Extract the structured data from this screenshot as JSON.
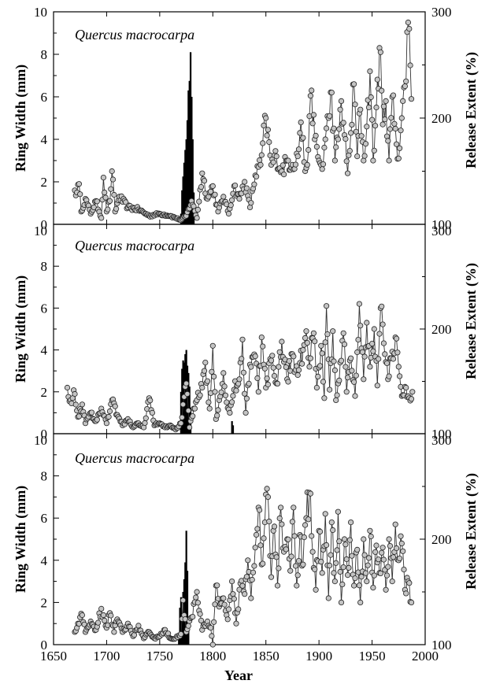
{
  "chart_data": {
    "type": "line",
    "x_axis": {
      "label": "Year",
      "range": [
        1650,
        2000
      ],
      "ticks": [
        1650,
        1700,
        1750,
        1800,
        1850,
        1900,
        1950,
        2000
      ]
    },
    "y_left": {
      "label": "Ring Width (mm)",
      "range": [
        0,
        10
      ],
      "ticks": [
        0,
        2,
        4,
        6,
        8,
        10
      ]
    },
    "y_right": {
      "label": "Release Extent (%)",
      "range": [
        100,
        300
      ],
      "ticks": [
        100,
        200,
        300
      ]
    },
    "panels": [
      {
        "title": "Quercus macrocarpa",
        "ring_width": {
          "start_year": 1670,
          "keypoints": [
            [
              1670,
              1.6
            ],
            [
              1672,
              1.5
            ],
            [
              1674,
              1.9
            ],
            [
              1676,
              0.6
            ],
            [
              1680,
              1.2
            ],
            [
              1685,
              0.5
            ],
            [
              1690,
              1.1
            ],
            [
              1695,
              0.3
            ],
            [
              1697,
              2.2
            ],
            [
              1700,
              0.6
            ],
            [
              1703,
              1.1
            ],
            [
              1705,
              2.5
            ],
            [
              1708,
              0.6
            ],
            [
              1712,
              1.3
            ],
            [
              1720,
              0.8
            ],
            [
              1730,
              0.7
            ],
            [
              1740,
              0.4
            ],
            [
              1750,
              0.5
            ],
            [
              1760,
              0.4
            ],
            [
              1770,
              0.2
            ],
            [
              1775,
              0.4
            ],
            [
              1780,
              1.1
            ],
            [
              1785,
              0.3
            ],
            [
              1790,
              2.4
            ],
            [
              1795,
              1.2
            ],
            [
              1800,
              1.8
            ],
            [
              1805,
              0.6
            ],
            [
              1810,
              1.3
            ],
            [
              1815,
              0.5
            ],
            [
              1820,
              1.8
            ],
            [
              1825,
              1.2
            ],
            [
              1830,
              2.0
            ],
            [
              1835,
              0.8
            ],
            [
              1840,
              2.3
            ],
            [
              1845,
              2.8
            ],
            [
              1850,
              5.0
            ],
            [
              1855,
              2.8
            ],
            [
              1860,
              3.2
            ],
            [
              1865,
              2.5
            ],
            [
              1870,
              3.0
            ],
            [
              1875,
              2.8
            ],
            [
              1880,
              3.2
            ],
            [
              1883,
              4.8
            ],
            [
              1887,
              2.5
            ],
            [
              1890,
              3.5
            ],
            [
              1893,
              6.3
            ],
            [
              1896,
              4.0
            ],
            [
              1900,
              3.0
            ],
            [
              1903,
              2.6
            ],
            [
              1906,
              4.0
            ],
            [
              1909,
              5.0
            ],
            [
              1912,
              6.2
            ],
            [
              1915,
              3.0
            ],
            [
              1918,
              4.0
            ],
            [
              1921,
              5.8
            ],
            [
              1924,
              4.2
            ],
            [
              1927,
              2.4
            ],
            [
              1930,
              4.3
            ],
            [
              1933,
              6.6
            ],
            [
              1936,
              3.2
            ],
            [
              1939,
              5.4
            ],
            [
              1942,
              3.0
            ],
            [
              1945,
              4.6
            ],
            [
              1948,
              7.2
            ],
            [
              1951,
              3.0
            ],
            [
              1954,
              5.5
            ],
            [
              1957,
              8.3
            ],
            [
              1960,
              4.7
            ],
            [
              1963,
              5.8
            ],
            [
              1966,
              3.0
            ],
            [
              1969,
              6.0
            ],
            [
              1972,
              4.5
            ],
            [
              1975,
              3.1
            ],
            [
              1978,
              5.0
            ],
            [
              1981,
              6.5
            ],
            [
              1984,
              9.5
            ],
            [
              1985,
              9.2
            ],
            [
              1987,
              5.9
            ]
          ]
        },
        "release_extent": {
          "years": [
            1770,
            1771,
            1772,
            1773,
            1774,
            1775,
            1776,
            1777,
            1778,
            1779,
            1780,
            1781,
            1782
          ],
          "values": [
            110,
            132,
            145,
            158,
            170,
            180,
            198,
            226,
            235,
            262,
            220,
            180,
            130
          ]
        }
      },
      {
        "title": "Quercus macrocarpa",
        "ring_width": {
          "start_year": 1663,
          "keypoints": [
            [
              1663,
              2.2
            ],
            [
              1666,
              1.6
            ],
            [
              1670,
              1.9
            ],
            [
              1673,
              0.8
            ],
            [
              1677,
              1.4
            ],
            [
              1680,
              0.5
            ],
            [
              1685,
              1.0
            ],
            [
              1690,
              0.6
            ],
            [
              1695,
              1.2
            ],
            [
              1700,
              0.5
            ],
            [
              1705,
              1.6
            ],
            [
              1710,
              0.9
            ],
            [
              1715,
              0.4
            ],
            [
              1720,
              0.7
            ],
            [
              1725,
              0.3
            ],
            [
              1730,
              0.5
            ],
            [
              1735,
              0.3
            ],
            [
              1740,
              1.7
            ],
            [
              1745,
              0.4
            ],
            [
              1750,
              0.5
            ],
            [
              1755,
              0.3
            ],
            [
              1760,
              0.4
            ],
            [
              1765,
              0.2
            ],
            [
              1770,
              0.5
            ],
            [
              1775,
              2.4
            ],
            [
              1778,
              0.3
            ],
            [
              1782,
              1.2
            ],
            [
              1785,
              1.6
            ],
            [
              1790,
              2.2
            ],
            [
              1793,
              3.4
            ],
            [
              1797,
              1.2
            ],
            [
              1800,
              4.2
            ],
            [
              1803,
              0.7
            ],
            [
              1806,
              1.6
            ],
            [
              1810,
              2.9
            ],
            [
              1813,
              1.5
            ],
            [
              1816,
              1.0
            ],
            [
              1820,
              2.1
            ],
            [
              1825,
              2.6
            ],
            [
              1828,
              4.5
            ],
            [
              1831,
              1.0
            ],
            [
              1835,
              3.3
            ],
            [
              1840,
              3.7
            ],
            [
              1843,
              2.0
            ],
            [
              1846,
              4.6
            ],
            [
              1850,
              2.2
            ],
            [
              1855,
              3.5
            ],
            [
              1860,
              2.4
            ],
            [
              1865,
              4.4
            ],
            [
              1870,
              2.6
            ],
            [
              1875,
              3.8
            ],
            [
              1880,
              2.8
            ],
            [
              1885,
              4.0
            ],
            [
              1888,
              4.9
            ],
            [
              1891,
              3.2
            ],
            [
              1895,
              4.8
            ],
            [
              1898,
              2.2
            ],
            [
              1902,
              4.2
            ],
            [
              1905,
              1.7
            ],
            [
              1907,
              6.1
            ],
            [
              1910,
              2.1
            ],
            [
              1913,
              4.9
            ],
            [
              1916,
              1.6
            ],
            [
              1920,
              3.4
            ],
            [
              1923,
              4.8
            ],
            [
              1926,
              2.0
            ],
            [
              1930,
              3.6
            ],
            [
              1934,
              1.8
            ],
            [
              1938,
              6.2
            ],
            [
              1942,
              2.6
            ],
            [
              1945,
              5.3
            ],
            [
              1948,
              3.2
            ],
            [
              1952,
              5.0
            ],
            [
              1955,
              2.3
            ],
            [
              1958,
              6.0
            ],
            [
              1962,
              3.8
            ],
            [
              1965,
              2.6
            ],
            [
              1968,
              3.6
            ],
            [
              1972,
              4.6
            ],
            [
              1975,
              3.2
            ],
            [
              1978,
              1.8
            ],
            [
              1982,
              2.2
            ],
            [
              1985,
              1.7
            ],
            [
              1988,
              2.0
            ]
          ]
        },
        "release_extent": {
          "years": [
            1770,
            1771,
            1772,
            1773,
            1774,
            1775,
            1776,
            1777,
            1778,
            1779,
            1818,
            1819
          ],
          "values": [
            140,
            162,
            170,
            168,
            176,
            180,
            165,
            158,
            145,
            125,
            112,
            108
          ]
        }
      },
      {
        "title": "Quercus macrocarpa",
        "ring_width": {
          "start_year": 1670,
          "keypoints": [
            [
              1670,
              0.6
            ],
            [
              1673,
              1.0
            ],
            [
              1677,
              1.4
            ],
            [
              1680,
              0.6
            ],
            [
              1685,
              1.1
            ],
            [
              1690,
              0.7
            ],
            [
              1695,
              1.7
            ],
            [
              1700,
              0.8
            ],
            [
              1703,
              1.5
            ],
            [
              1707,
              0.6
            ],
            [
              1710,
              1.2
            ],
            [
              1715,
              0.6
            ],
            [
              1720,
              1.0
            ],
            [
              1725,
              0.4
            ],
            [
              1730,
              0.9
            ],
            [
              1735,
              0.3
            ],
            [
              1740,
              0.6
            ],
            [
              1745,
              0.3
            ],
            [
              1750,
              0.4
            ],
            [
              1755,
              0.7
            ],
            [
              1760,
              0.3
            ],
            [
              1765,
              0.3
            ],
            [
              1770,
              0.5
            ],
            [
              1772,
              2.1
            ],
            [
              1775,
              0.6
            ],
            [
              1780,
              1.3
            ],
            [
              1785,
              2.5
            ],
            [
              1790,
              0.7
            ],
            [
              1795,
              1.1
            ],
            [
              1798,
              0.8
            ],
            [
              1800,
              0.0
            ],
            [
              1803,
              2.8
            ],
            [
              1806,
              1.8
            ],
            [
              1810,
              2.2
            ],
            [
              1814,
              1.2
            ],
            [
              1818,
              3.0
            ],
            [
              1822,
              1.0
            ],
            [
              1826,
              2.9
            ],
            [
              1830,
              2.4
            ],
            [
              1833,
              4.0
            ],
            [
              1836,
              2.2
            ],
            [
              1840,
              4.6
            ],
            [
              1843,
              6.5
            ],
            [
              1846,
              3.8
            ],
            [
              1849,
              5.8
            ],
            [
              1852,
              7.0
            ],
            [
              1855,
              3.2
            ],
            [
              1858,
              5.6
            ],
            [
              1861,
              2.8
            ],
            [
              1864,
              6.5
            ],
            [
              1867,
              4.4
            ],
            [
              1870,
              5.0
            ],
            [
              1873,
              3.5
            ],
            [
              1876,
              6.5
            ],
            [
              1879,
              2.8
            ],
            [
              1882,
              5.2
            ],
            [
              1885,
              3.8
            ],
            [
              1888,
              6.0
            ],
            [
              1891,
              7.2
            ],
            [
              1894,
              4.4
            ],
            [
              1897,
              2.6
            ],
            [
              1900,
              5.4
            ],
            [
              1903,
              3.4
            ],
            [
              1906,
              6.2
            ],
            [
              1909,
              2.2
            ],
            [
              1912,
              5.8
            ],
            [
              1915,
              3.0
            ],
            [
              1918,
              6.3
            ],
            [
              1921,
              2.0
            ],
            [
              1924,
              5.0
            ],
            [
              1927,
              3.3
            ],
            [
              1930,
              5.8
            ],
            [
              1933,
              2.8
            ],
            [
              1936,
              4.5
            ],
            [
              1939,
              2.0
            ],
            [
              1942,
              5.0
            ],
            [
              1945,
              3.0
            ],
            [
              1948,
              5.4
            ],
            [
              1951,
              2.7
            ],
            [
              1954,
              4.7
            ],
            [
              1957,
              3.4
            ],
            [
              1960,
              4.6
            ],
            [
              1963,
              2.6
            ],
            [
              1966,
              5.0
            ],
            [
              1969,
              3.0
            ],
            [
              1972,
              5.7
            ],
            [
              1975,
              4.0
            ],
            [
              1978,
              4.8
            ],
            [
              1981,
              2.6
            ],
            [
              1984,
              3.0
            ],
            [
              1987,
              2.0
            ]
          ]
        },
        "release_extent": {
          "years": [
            1768,
            1769,
            1770,
            1771,
            1772,
            1773,
            1774,
            1775,
            1776,
            1777
          ],
          "values": [
            110,
            135,
            145,
            128,
            150,
            162,
            178,
            208,
            170,
            118
          ]
        }
      }
    ],
    "grid": false
  }
}
